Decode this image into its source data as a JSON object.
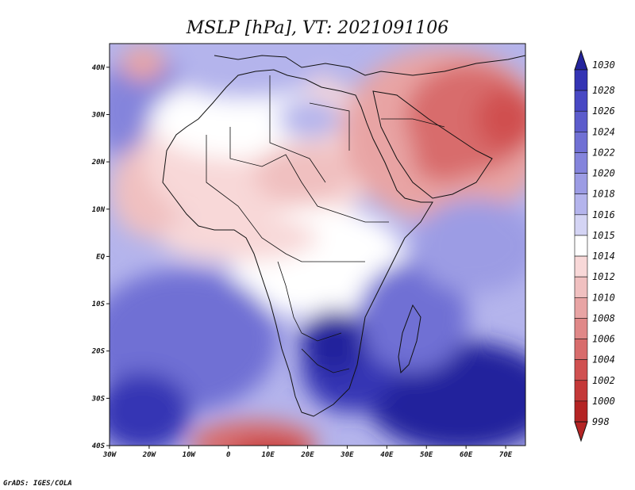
{
  "title": "MSLP [hPa], VT: 2021091106",
  "credit": "GrADS: IGES/COLA",
  "x_ticks": [
    "30W",
    "20W",
    "10W",
    "0",
    "10E",
    "20E",
    "30E",
    "40E",
    "50E",
    "60E",
    "70E"
  ],
  "y_ticks": [
    "40N",
    "30N",
    "20N",
    "10N",
    "EQ",
    "10S",
    "20S",
    "30S",
    "40S"
  ],
  "colorbar": {
    "levels": [
      "1030",
      "1028",
      "1026",
      "1024",
      "1022",
      "1020",
      "1018",
      "1016",
      "1015",
      "1014",
      "1012",
      "1010",
      "1008",
      "1006",
      "1004",
      "1002",
      "1000",
      "998"
    ],
    "colors": [
      "#24249c",
      "#3434b4",
      "#4848c4",
      "#5c5ccc",
      "#7070d4",
      "#8484dc",
      "#9c9ce4",
      "#b4b4ec",
      "#d4d4f4",
      "#ffffff",
      "#f8d8d8",
      "#f0c0c0",
      "#e8a4a4",
      "#e08888",
      "#d86c6c",
      "#d05050",
      "#c43838",
      "#b42424"
    ]
  },
  "map": {
    "lon_range": [
      -30,
      75
    ],
    "lat_range": [
      -40,
      45
    ],
    "variable": "MSLP",
    "units": "hPa",
    "valid_time": "2021091106"
  }
}
